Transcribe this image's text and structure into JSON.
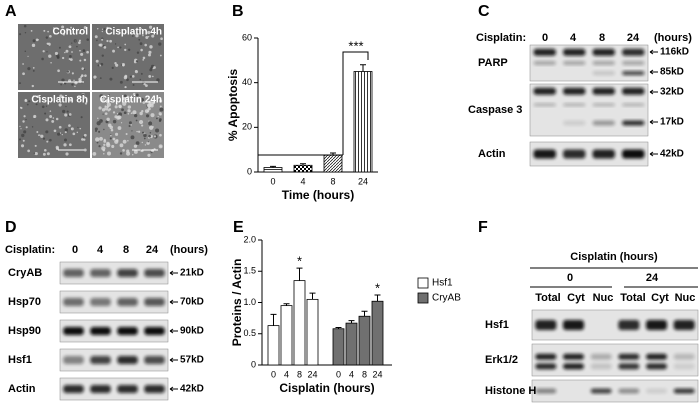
{
  "panel_labels": [
    "A",
    "B",
    "C",
    "D",
    "E",
    "F"
  ],
  "panel_a": {
    "images": [
      "Control",
      "Cisplatin 4h",
      "Cisplatin 8h",
      "Cisplatin 24h"
    ]
  },
  "chart_data": [
    {
      "type": "bar",
      "y_label": "% Apoptosis",
      "x_label": "Time (hours)",
      "categories": [
        "0",
        "4",
        "8",
        "24"
      ],
      "values": [
        2,
        3,
        7.5,
        45
      ],
      "errors": [
        0.5,
        0.7,
        1,
        3
      ],
      "ylim": [
        0,
        60
      ],
      "yticks": [
        0,
        20,
        40,
        60
      ],
      "annotations": [
        "***"
      ]
    },
    {
      "type": "grouped_bar",
      "y_label": "Proteins / Actin",
      "x_label": "Cisplatin (hours)",
      "categories": [
        "0",
        "4",
        "8",
        "24"
      ],
      "series": [
        {
          "name": "Hsf1",
          "color": "#ffffff",
          "values": [
            0.63,
            0.95,
            1.35,
            1.05
          ],
          "errors": [
            0.18,
            0.03,
            0.2,
            0.1
          ]
        },
        {
          "name": "CryAB",
          "color": "#707070",
          "values": [
            0.58,
            0.67,
            0.78,
            1.02
          ],
          "errors": [
            0.02,
            0.04,
            0.08,
            0.1
          ]
        }
      ],
      "ylim": [
        0,
        2
      ],
      "yticks": [
        0,
        0.5,
        {
          "value": 1,
          "label": "1.0"
        },
        1.5,
        {
          "value": 2,
          "label": "2.0"
        }
      ],
      "annotations": [
        "*",
        "*"
      ]
    }
  ],
  "panel_c": {
    "treatment": "Cisplatin:",
    "lanes": [
      "0",
      "4",
      "8",
      "24"
    ],
    "unit": "(hours)",
    "blots": [
      {
        "label": "PARP",
        "markers": [
          "116kD",
          "85kD"
        ]
      },
      {
        "label": "Caspase 3",
        "markers": [
          "32kD",
          "17kD"
        ]
      },
      {
        "label": "Actin",
        "markers": [
          "42kD"
        ]
      }
    ]
  },
  "panel_d": {
    "treatment": "Cisplatin:",
    "lanes": [
      "0",
      "4",
      "8",
      "24"
    ],
    "unit": "(hours)",
    "blots": [
      {
        "label": "CryAB",
        "markers": [
          "21kD"
        ]
      },
      {
        "label": "Hsp70",
        "markers": [
          "70kD"
        ]
      },
      {
        "label": "Hsp90",
        "markers": [
          "90kD"
        ]
      },
      {
        "label": "Hsf1",
        "markers": [
          "57kD"
        ]
      },
      {
        "label": "Actin",
        "markers": [
          "42kD"
        ]
      }
    ]
  },
  "panel_f": {
    "title": "Cisplatin (hours)",
    "groups": [
      "0",
      "24"
    ],
    "columns": [
      "Total",
      "Cyt",
      "Nuc",
      "Total",
      "Cyt",
      "Nuc"
    ],
    "blots": [
      "Hsf1",
      "Erk1/2",
      "Histone H"
    ]
  }
}
